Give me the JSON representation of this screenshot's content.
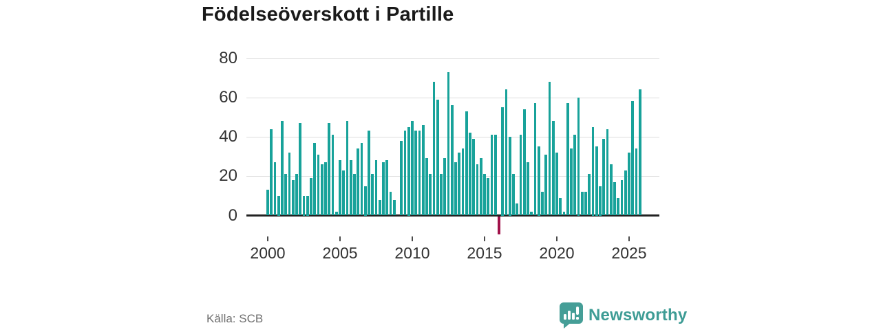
{
  "title": "Födelseöverskott i Partille",
  "source_label": "Källa: SCB",
  "branding": {
    "name": "Newsworthy",
    "logo_icon": "speech-bubble-bar-chart-icon"
  },
  "colors": {
    "bar": "#18a29a",
    "negative_bar": "#a1124a",
    "axis": "#222222",
    "grid": "#dcdcdc",
    "title_text": "#1a1a1a",
    "tick_text": "#333333",
    "source_text": "#6f6f6f",
    "brand": "#3e9c95"
  },
  "chart_data": {
    "type": "bar",
    "title": "Födelseöverskott i Partille",
    "frequency": "quarterly",
    "start_year": 2000,
    "xticks": [
      "2000",
      "2005",
      "2010",
      "2015",
      "2020",
      "2025"
    ],
    "yticks": [
      0,
      20,
      40,
      60,
      80
    ],
    "ylim": [
      -12,
      80
    ],
    "grid": "horizontal-only",
    "note_gap": "2009 Q1 has no bar (value 0)",
    "note_negative": "2016 Q1 is negative and drawn in dark red below the axis",
    "values": [
      13,
      44,
      27,
      10,
      48,
      21,
      32,
      18,
      21,
      47,
      10,
      10,
      19,
      37,
      31,
      26,
      27,
      47,
      41,
      2,
      28,
      23,
      48,
      28,
      21,
      34,
      37,
      15,
      43,
      21,
      28,
      8,
      27,
      28,
      12,
      8,
      0,
      38,
      43,
      45,
      48,
      43,
      43,
      46,
      29,
      21,
      68,
      59,
      21,
      29,
      73,
      56,
      27,
      32,
      34,
      53,
      42,
      39,
      26,
      29,
      21,
      19,
      41,
      41,
      -9,
      55,
      64,
      40,
      21,
      6,
      41,
      54,
      27,
      2,
      57,
      35,
      12,
      31,
      68,
      48,
      32,
      9,
      2,
      57,
      34,
      41,
      60,
      12,
      12,
      21,
      45,
      35,
      15,
      39,
      44,
      26,
      17,
      9,
      18,
      23,
      32,
      58,
      34,
      64
    ]
  }
}
